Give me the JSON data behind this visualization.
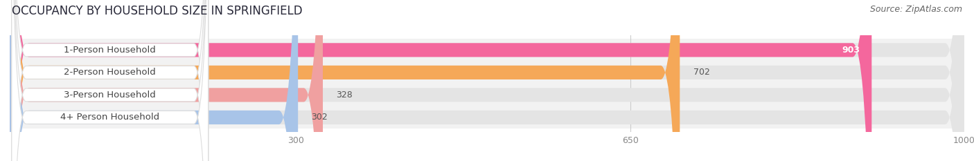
{
  "title": "OCCUPANCY BY HOUSEHOLD SIZE IN SPRINGFIELD",
  "source": "Source: ZipAtlas.com",
  "categories": [
    "1-Person Household",
    "2-Person Household",
    "3-Person Household",
    "4+ Person Household"
  ],
  "values": [
    903,
    702,
    328,
    302
  ],
  "bar_colors": [
    "#f4679d",
    "#f5a858",
    "#f0a0a0",
    "#a8c4e8"
  ],
  "xlim_data": [
    0,
    1000
  ],
  "xticks": [
    300,
    650,
    1000
  ],
  "title_fontsize": 12,
  "source_fontsize": 9,
  "label_fontsize": 9.5,
  "value_fontsize": 9,
  "background_color": "#ffffff",
  "bar_height": 0.62,
  "row_bg_color": "#f2f2f2",
  "bar_bg_color": "#e4e4e4",
  "label_box_color": "#ffffff",
  "label_text_color": "#444444",
  "value_color_inside": "#ffffff",
  "value_color_outside": "#555555",
  "grid_color": "#cccccc",
  "tick_color": "#888888"
}
